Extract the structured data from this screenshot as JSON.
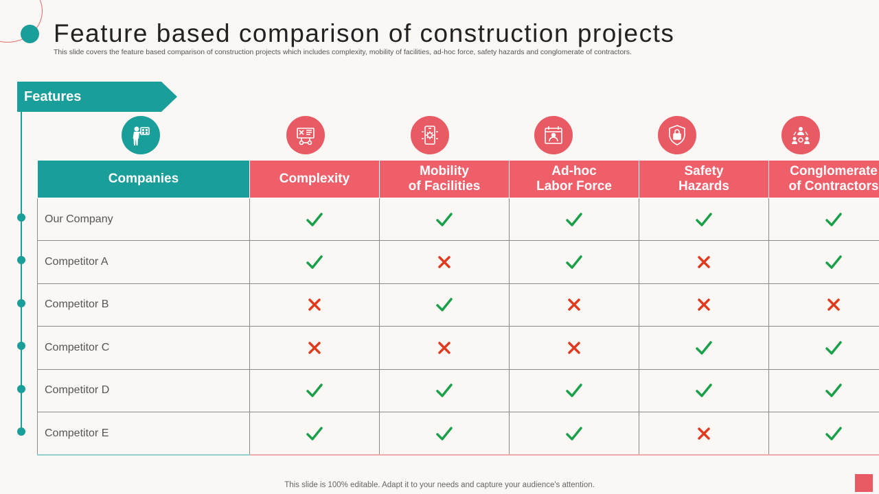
{
  "page": {
    "title": "Feature based comparison of construction projects",
    "subtitle": "This slide covers the feature based comparison of construction projects which includes complexity, mobility of facilities, ad-hoc force, safety hazards and conglomerate of contractors.",
    "features_label": "Features",
    "footer": "This slide is 100% editable. Adapt it to your needs and capture your audience's attention."
  },
  "colors": {
    "teal": "#1a9e9a",
    "red": "#ef5f6a",
    "check": "#1aa04a",
    "cross": "#e03a1e"
  },
  "icons": [
    "worker-icon",
    "blueprint-icon",
    "mobile-settings-icon",
    "calendar-worker-icon",
    "shield-lock-icon",
    "team-network-icon"
  ],
  "table": {
    "headers": {
      "companies": "Companies",
      "complexity": "Complexity",
      "mobility_1": "Mobility",
      "mobility_2": "of Facilities",
      "adhoc_1": "Ad-hoc",
      "adhoc_2": "Labor Force",
      "safety_1": "Safety",
      "safety_2": "Hazards",
      "conglomerate_1": "Conglomerate",
      "conglomerate_2": "of Contractors"
    },
    "rows": [
      {
        "company": "Our Company",
        "values": [
          "yes",
          "yes",
          "yes",
          "yes",
          "yes"
        ]
      },
      {
        "company": "Competitor A",
        "values": [
          "yes",
          "no",
          "yes",
          "no",
          "yes"
        ]
      },
      {
        "company": "Competitor B",
        "values": [
          "no",
          "yes",
          "no",
          "no",
          "no"
        ]
      },
      {
        "company": "Competitor C",
        "values": [
          "no",
          "no",
          "no",
          "yes",
          "yes"
        ]
      },
      {
        "company": "Competitor D",
        "values": [
          "yes",
          "yes",
          "yes",
          "yes",
          "yes"
        ]
      },
      {
        "company": "Competitor E",
        "values": [
          "yes",
          "yes",
          "yes",
          "no",
          "yes"
        ]
      }
    ]
  }
}
